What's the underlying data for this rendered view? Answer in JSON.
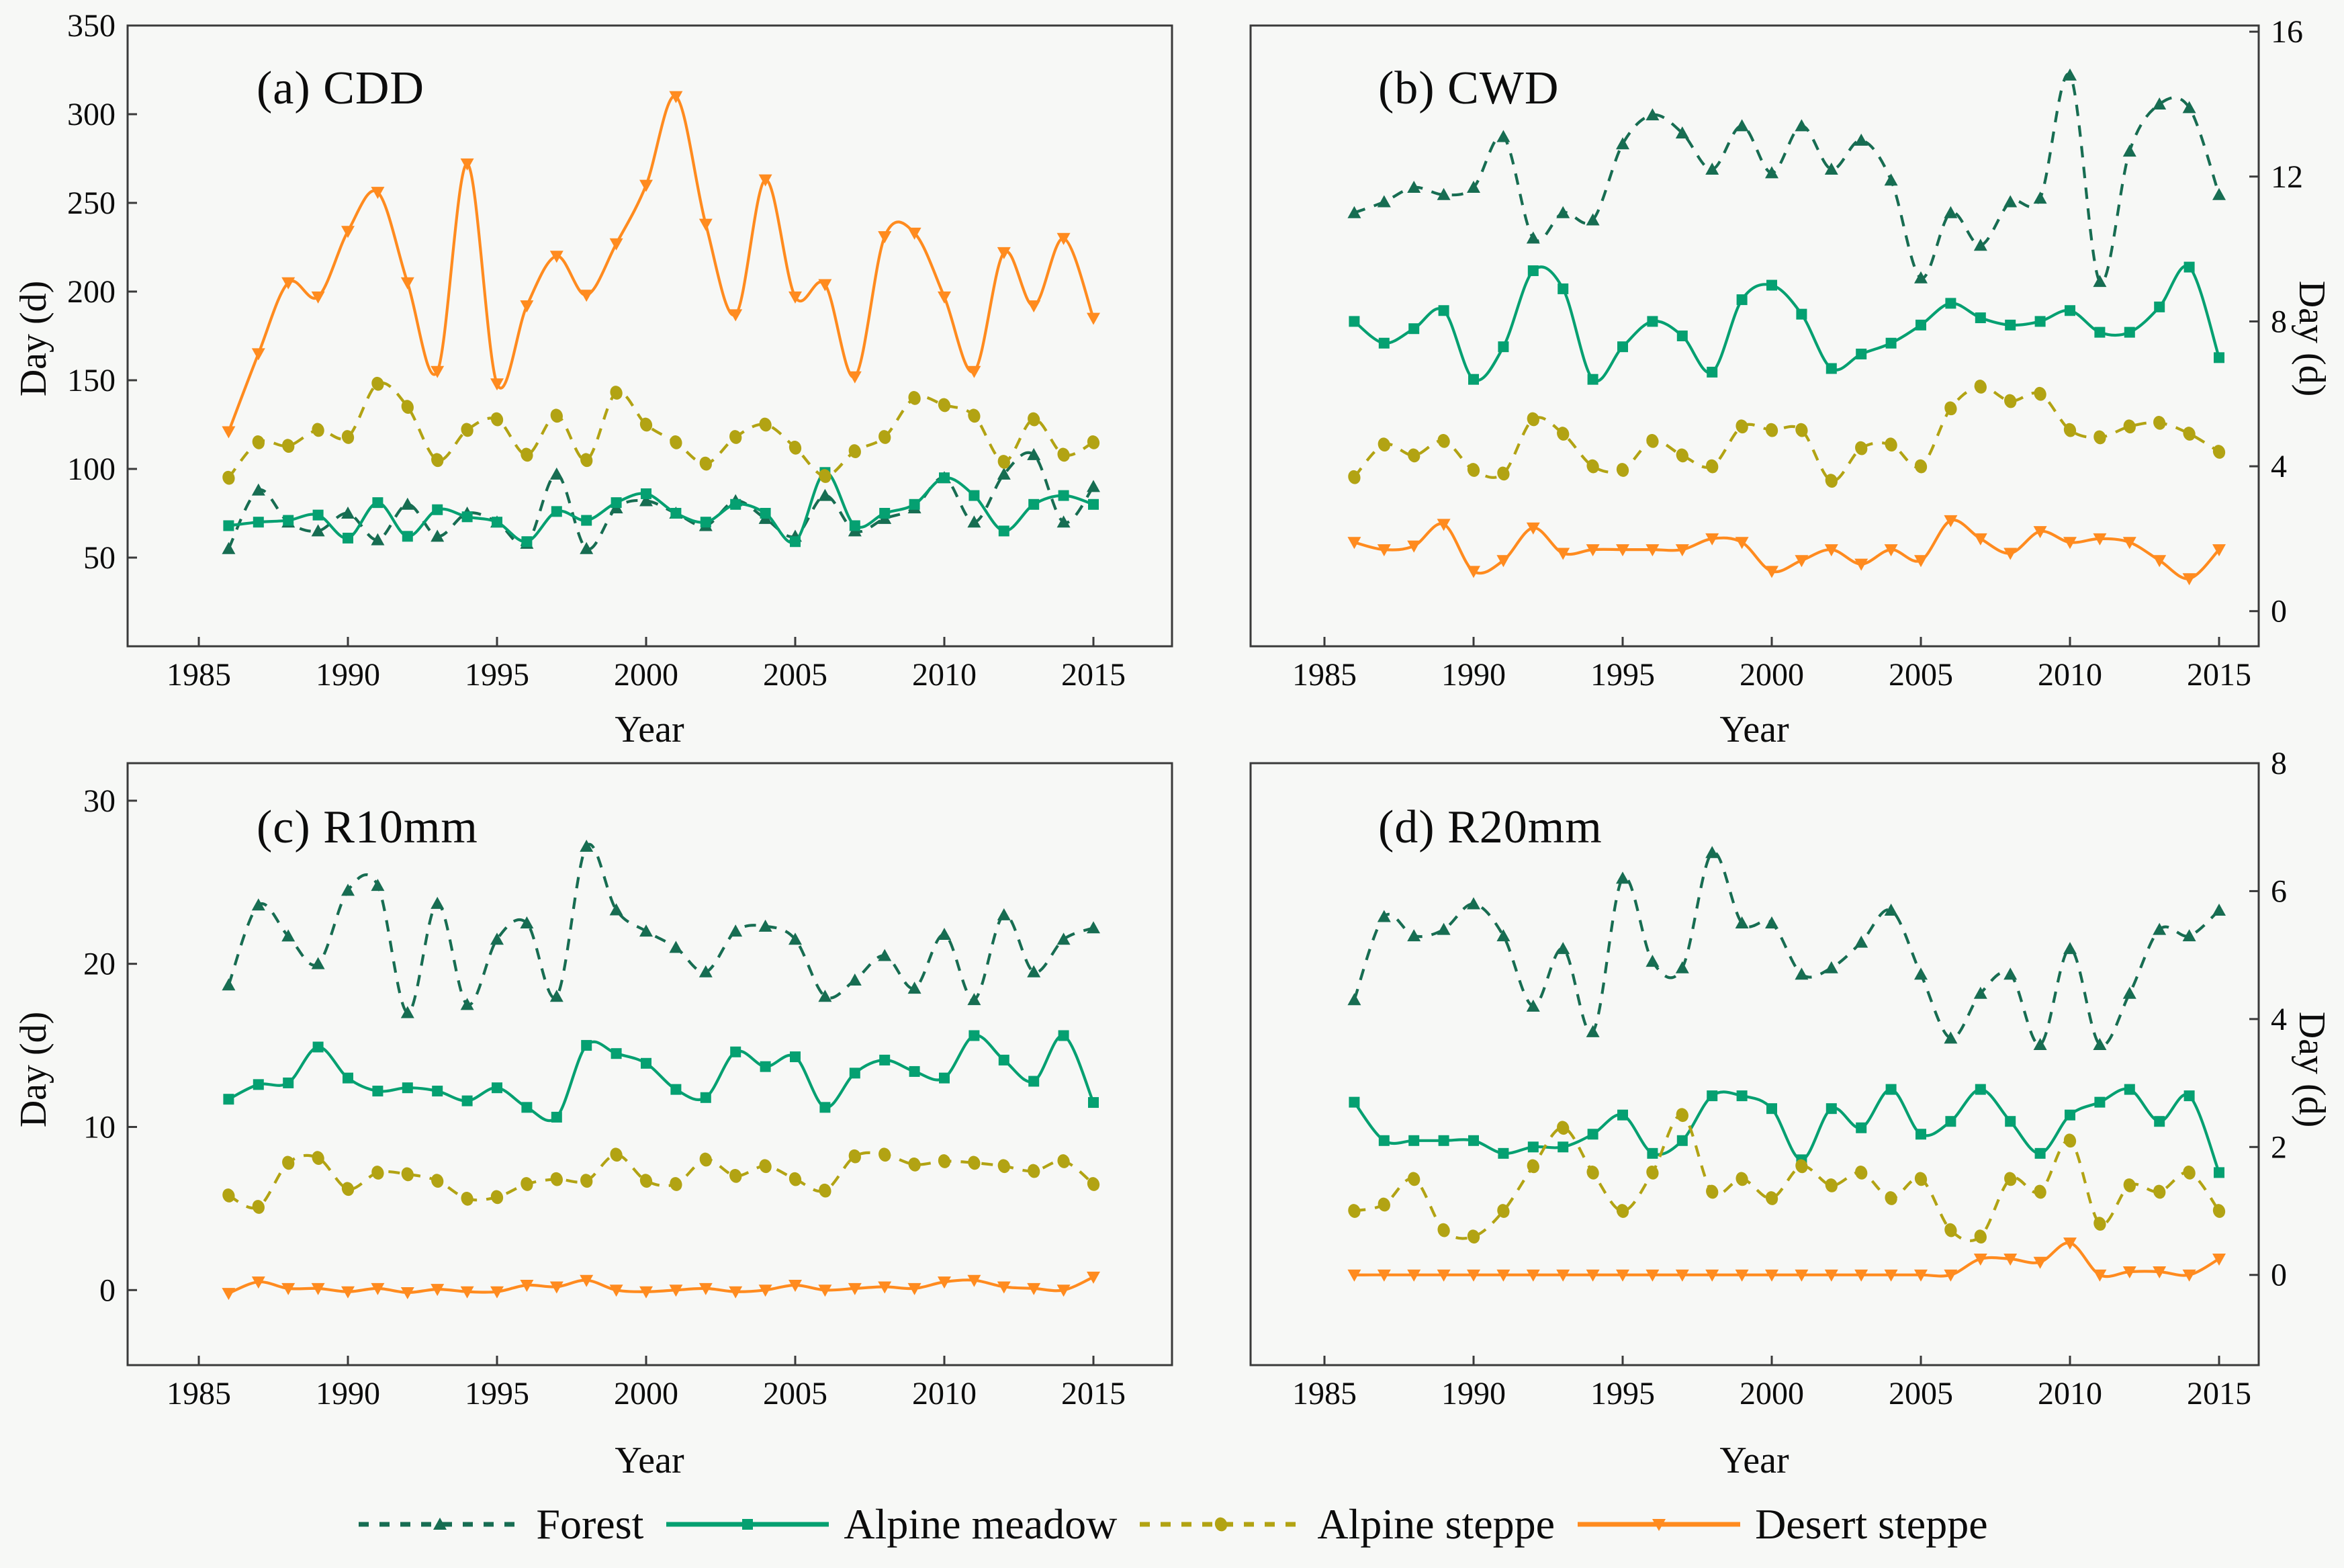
{
  "figure": {
    "x_axis_title": "Year",
    "y_axis_title": "Day (d)"
  },
  "chart_data": [
    {
      "type": "line",
      "panel": "a",
      "title": "(a) CDD",
      "ylabel": "Day (d)",
      "xlabel": "Year",
      "y_axis_side": "left",
      "ylim": [
        0,
        350
      ],
      "y_ticks": [
        50,
        100,
        150,
        200,
        250,
        300,
        350
      ],
      "x_ticks": [
        1985,
        1990,
        1995,
        2000,
        2005,
        2010,
        2015
      ],
      "x": [
        1986,
        1987,
        1988,
        1989,
        1990,
        1991,
        1992,
        1993,
        1994,
        1995,
        1996,
        1997,
        1998,
        1999,
        2000,
        2001,
        2002,
        2003,
        2004,
        2005,
        2006,
        2007,
        2008,
        2009,
        2010,
        2011,
        2012,
        2013,
        2014,
        2015
      ],
      "series": [
        {
          "name": "Forest",
          "values": [
            55,
            88,
            70,
            65,
            75,
            60,
            80,
            62,
            75,
            70,
            58,
            97,
            55,
            78,
            82,
            75,
            68,
            82,
            72,
            62,
            85,
            65,
            72,
            78,
            95,
            70,
            97,
            108,
            70,
            90
          ]
        },
        {
          "name": "Alpine meadow",
          "values": [
            68,
            70,
            71,
            74,
            61,
            81,
            62,
            77,
            73,
            70,
            59,
            76,
            71,
            81,
            86,
            75,
            70,
            80,
            75,
            59,
            98,
            68,
            75,
            80,
            95,
            85,
            65,
            80,
            85,
            80
          ]
        },
        {
          "name": "Alpine steppe",
          "values": [
            95,
            115,
            113,
            122,
            118,
            148,
            135,
            105,
            122,
            128,
            108,
            130,
            105,
            143,
            125,
            115,
            103,
            118,
            125,
            112,
            96,
            110,
            118,
            140,
            136,
            130,
            104,
            128,
            108,
            115
          ]
        },
        {
          "name": "Desert steppe",
          "values": [
            121,
            165,
            205,
            197,
            234,
            256,
            205,
            155,
            272,
            148,
            192,
            220,
            198,
            227,
            260,
            310,
            238,
            187,
            263,
            197,
            204,
            152,
            231,
            233,
            197,
            155,
            222,
            192,
            230,
            185
          ]
        }
      ]
    },
    {
      "type": "line",
      "panel": "b",
      "title": "(b) CWD",
      "ylabel": "Day (d)",
      "xlabel": "Year",
      "y_axis_side": "right",
      "ylim": [
        0,
        16
      ],
      "y_ticks": [
        0,
        4,
        8,
        12,
        16
      ],
      "x_ticks": [
        1985,
        1990,
        1995,
        2000,
        2005,
        2010,
        2015
      ],
      "x": [
        1986,
        1987,
        1988,
        1989,
        1990,
        1991,
        1992,
        1993,
        1994,
        1995,
        1996,
        1997,
        1998,
        1999,
        2000,
        2001,
        2002,
        2003,
        2004,
        2005,
        2006,
        2007,
        2008,
        2009,
        2010,
        2011,
        2012,
        2013,
        2014,
        2015
      ],
      "series": [
        {
          "name": "Forest",
          "values": [
            11.0,
            11.3,
            11.7,
            11.5,
            11.7,
            13.1,
            10.3,
            11.0,
            10.8,
            12.9,
            13.7,
            13.2,
            12.2,
            13.4,
            12.1,
            13.4,
            12.2,
            13.0,
            11.9,
            9.2,
            11.0,
            10.1,
            11.3,
            11.4,
            14.8,
            9.1,
            12.7,
            14.0,
            13.9,
            11.5
          ]
        },
        {
          "name": "Alpine meadow",
          "values": [
            8.0,
            7.4,
            7.8,
            8.3,
            6.4,
            7.3,
            9.4,
            8.9,
            6.4,
            7.3,
            8.0,
            7.6,
            6.6,
            8.6,
            9.0,
            8.2,
            6.7,
            7.1,
            7.4,
            7.9,
            8.5,
            8.1,
            7.9,
            8.0,
            8.3,
            7.7,
            7.7,
            8.4,
            9.5,
            7.0
          ]
        },
        {
          "name": "Alpine steppe",
          "values": [
            3.7,
            4.6,
            4.3,
            4.7,
            3.9,
            3.8,
            5.3,
            4.9,
            4.0,
            3.9,
            4.7,
            4.3,
            4.0,
            5.1,
            5.0,
            5.0,
            3.6,
            4.5,
            4.6,
            4.0,
            5.6,
            6.2,
            5.8,
            6.0,
            5.0,
            4.8,
            5.1,
            5.2,
            4.9,
            4.4
          ]
        },
        {
          "name": "Desert steppe",
          "values": [
            1.9,
            1.7,
            1.8,
            2.4,
            1.1,
            1.4,
            2.3,
            1.6,
            1.7,
            1.7,
            1.7,
            1.7,
            2.0,
            1.9,
            1.1,
            1.4,
            1.7,
            1.3,
            1.7,
            1.4,
            2.5,
            2.0,
            1.6,
            2.2,
            1.9,
            2.0,
            1.9,
            1.4,
            0.9,
            1.7
          ]
        }
      ]
    },
    {
      "type": "line",
      "panel": "c",
      "title": "(c) R10mm",
      "ylabel": "Day (d)",
      "xlabel": "Year",
      "y_axis_side": "left",
      "ylim": [
        0,
        30
      ],
      "y_ticks": [
        0,
        10,
        20,
        30
      ],
      "x_ticks": [
        1985,
        1990,
        1995,
        2000,
        2005,
        2010,
        2015
      ],
      "x": [
        1986,
        1987,
        1988,
        1989,
        1990,
        1991,
        1992,
        1993,
        1994,
        1995,
        1996,
        1997,
        1998,
        1999,
        2000,
        2001,
        2002,
        2003,
        2004,
        2005,
        2006,
        2007,
        2008,
        2009,
        2010,
        2011,
        2012,
        2013,
        2014,
        2015
      ],
      "series": [
        {
          "name": "Forest",
          "values": [
            18.7,
            23.6,
            21.7,
            20.0,
            24.5,
            24.8,
            17.0,
            23.7,
            17.5,
            21.5,
            22.5,
            18.0,
            27.2,
            23.3,
            22.0,
            21.0,
            19.5,
            22.0,
            22.3,
            21.5,
            18.0,
            19.0,
            20.5,
            18.5,
            21.8,
            17.8,
            23.0,
            19.5,
            21.5,
            22.2
          ]
        },
        {
          "name": "Alpine meadow",
          "values": [
            11.7,
            12.6,
            12.7,
            14.9,
            13.0,
            12.2,
            12.4,
            12.2,
            11.6,
            12.4,
            11.2,
            10.6,
            15.0,
            14.5,
            13.9,
            12.3,
            11.8,
            14.6,
            13.7,
            14.3,
            11.2,
            13.3,
            14.1,
            13.4,
            13.0,
            15.6,
            14.1,
            12.8,
            15.6,
            11.5
          ]
        },
        {
          "name": "Alpine steppe",
          "values": [
            5.8,
            5.1,
            7.8,
            8.1,
            6.2,
            7.2,
            7.1,
            6.7,
            5.6,
            5.7,
            6.5,
            6.8,
            6.7,
            8.3,
            6.7,
            6.5,
            8.0,
            7.0,
            7.6,
            6.8,
            6.1,
            8.2,
            8.3,
            7.7,
            7.9,
            7.8,
            7.6,
            7.3,
            7.9,
            6.5
          ]
        },
        {
          "name": "Desert steppe",
          "values": [
            -0.2,
            0.5,
            0.1,
            0.1,
            -0.1,
            0.1,
            -0.15,
            0.05,
            -0.1,
            -0.1,
            0.3,
            0.2,
            0.6,
            0.0,
            -0.1,
            0.0,
            0.1,
            -0.1,
            0.0,
            0.3,
            0.0,
            0.1,
            0.2,
            0.1,
            0.5,
            0.6,
            0.2,
            0.1,
            0.0,
            0.8
          ]
        }
      ]
    },
    {
      "type": "line",
      "panel": "d",
      "title": "(d) R20mm",
      "ylabel": "Day (d)",
      "xlabel": "Year",
      "y_axis_side": "right",
      "ylim": [
        0,
        8
      ],
      "y_ticks": [
        0,
        2,
        4,
        6,
        8
      ],
      "x_ticks": [
        1985,
        1990,
        1995,
        2000,
        2005,
        2010,
        2015
      ],
      "x": [
        1986,
        1987,
        1988,
        1989,
        1990,
        1991,
        1992,
        1993,
        1994,
        1995,
        1996,
        1997,
        1998,
        1999,
        2000,
        2001,
        2002,
        2003,
        2004,
        2005,
        2006,
        2007,
        2008,
        2009,
        2010,
        2011,
        2012,
        2013,
        2014,
        2015
      ],
      "series": [
        {
          "name": "Forest",
          "values": [
            4.3,
            5.6,
            5.3,
            5.4,
            5.8,
            5.3,
            4.2,
            5.1,
            3.8,
            6.2,
            4.9,
            4.8,
            6.6,
            5.5,
            5.5,
            4.7,
            4.8,
            5.2,
            5.7,
            4.7,
            3.7,
            4.4,
            4.7,
            3.6,
            5.1,
            3.6,
            4.4,
            5.4,
            5.3,
            5.7
          ]
        },
        {
          "name": "Alpine meadow",
          "values": [
            2.7,
            2.1,
            2.1,
            2.1,
            2.1,
            1.9,
            2.0,
            2.0,
            2.2,
            2.5,
            1.9,
            2.1,
            2.8,
            2.8,
            2.6,
            1.8,
            2.6,
            2.3,
            2.9,
            2.2,
            2.4,
            2.9,
            2.4,
            1.9,
            2.5,
            2.7,
            2.9,
            2.4,
            2.8,
            1.6
          ]
        },
        {
          "name": "Alpine steppe",
          "values": [
            1.0,
            1.1,
            1.5,
            0.7,
            0.6,
            1.0,
            1.7,
            2.3,
            1.6,
            1.0,
            1.6,
            2.5,
            1.3,
            1.5,
            1.2,
            1.7,
            1.4,
            1.6,
            1.2,
            1.5,
            0.7,
            0.6,
            1.5,
            1.3,
            2.1,
            0.8,
            1.4,
            1.3,
            1.6,
            1.0
          ]
        },
        {
          "name": "Desert steppe",
          "values": [
            0,
            0,
            0,
            0,
            0,
            0,
            0,
            0,
            0,
            0,
            0,
            0,
            0,
            0,
            0,
            0,
            0,
            0,
            0,
            0,
            0,
            0.25,
            0.25,
            0.2,
            0.5,
            0.0,
            0.05,
            0.05,
            0.0,
            0.25
          ]
        }
      ]
    }
  ],
  "legend": {
    "items": [
      {
        "label": "Forest",
        "color": "#176d52",
        "dash": true,
        "marker": "triangle-up"
      },
      {
        "label": "Alpine meadow",
        "color": "#05a071",
        "dash": false,
        "marker": "square"
      },
      {
        "label": "Alpine steppe",
        "color": "#b2a313",
        "dash": true,
        "marker": "circle"
      },
      {
        "label": "Desert steppe",
        "color": "#ff8b1f",
        "dash": false,
        "marker": "triangle-down"
      }
    ]
  },
  "colors": {
    "background": "#f7f8f6",
    "frame": "#3a3a3a",
    "text": "#0c0c0c"
  }
}
